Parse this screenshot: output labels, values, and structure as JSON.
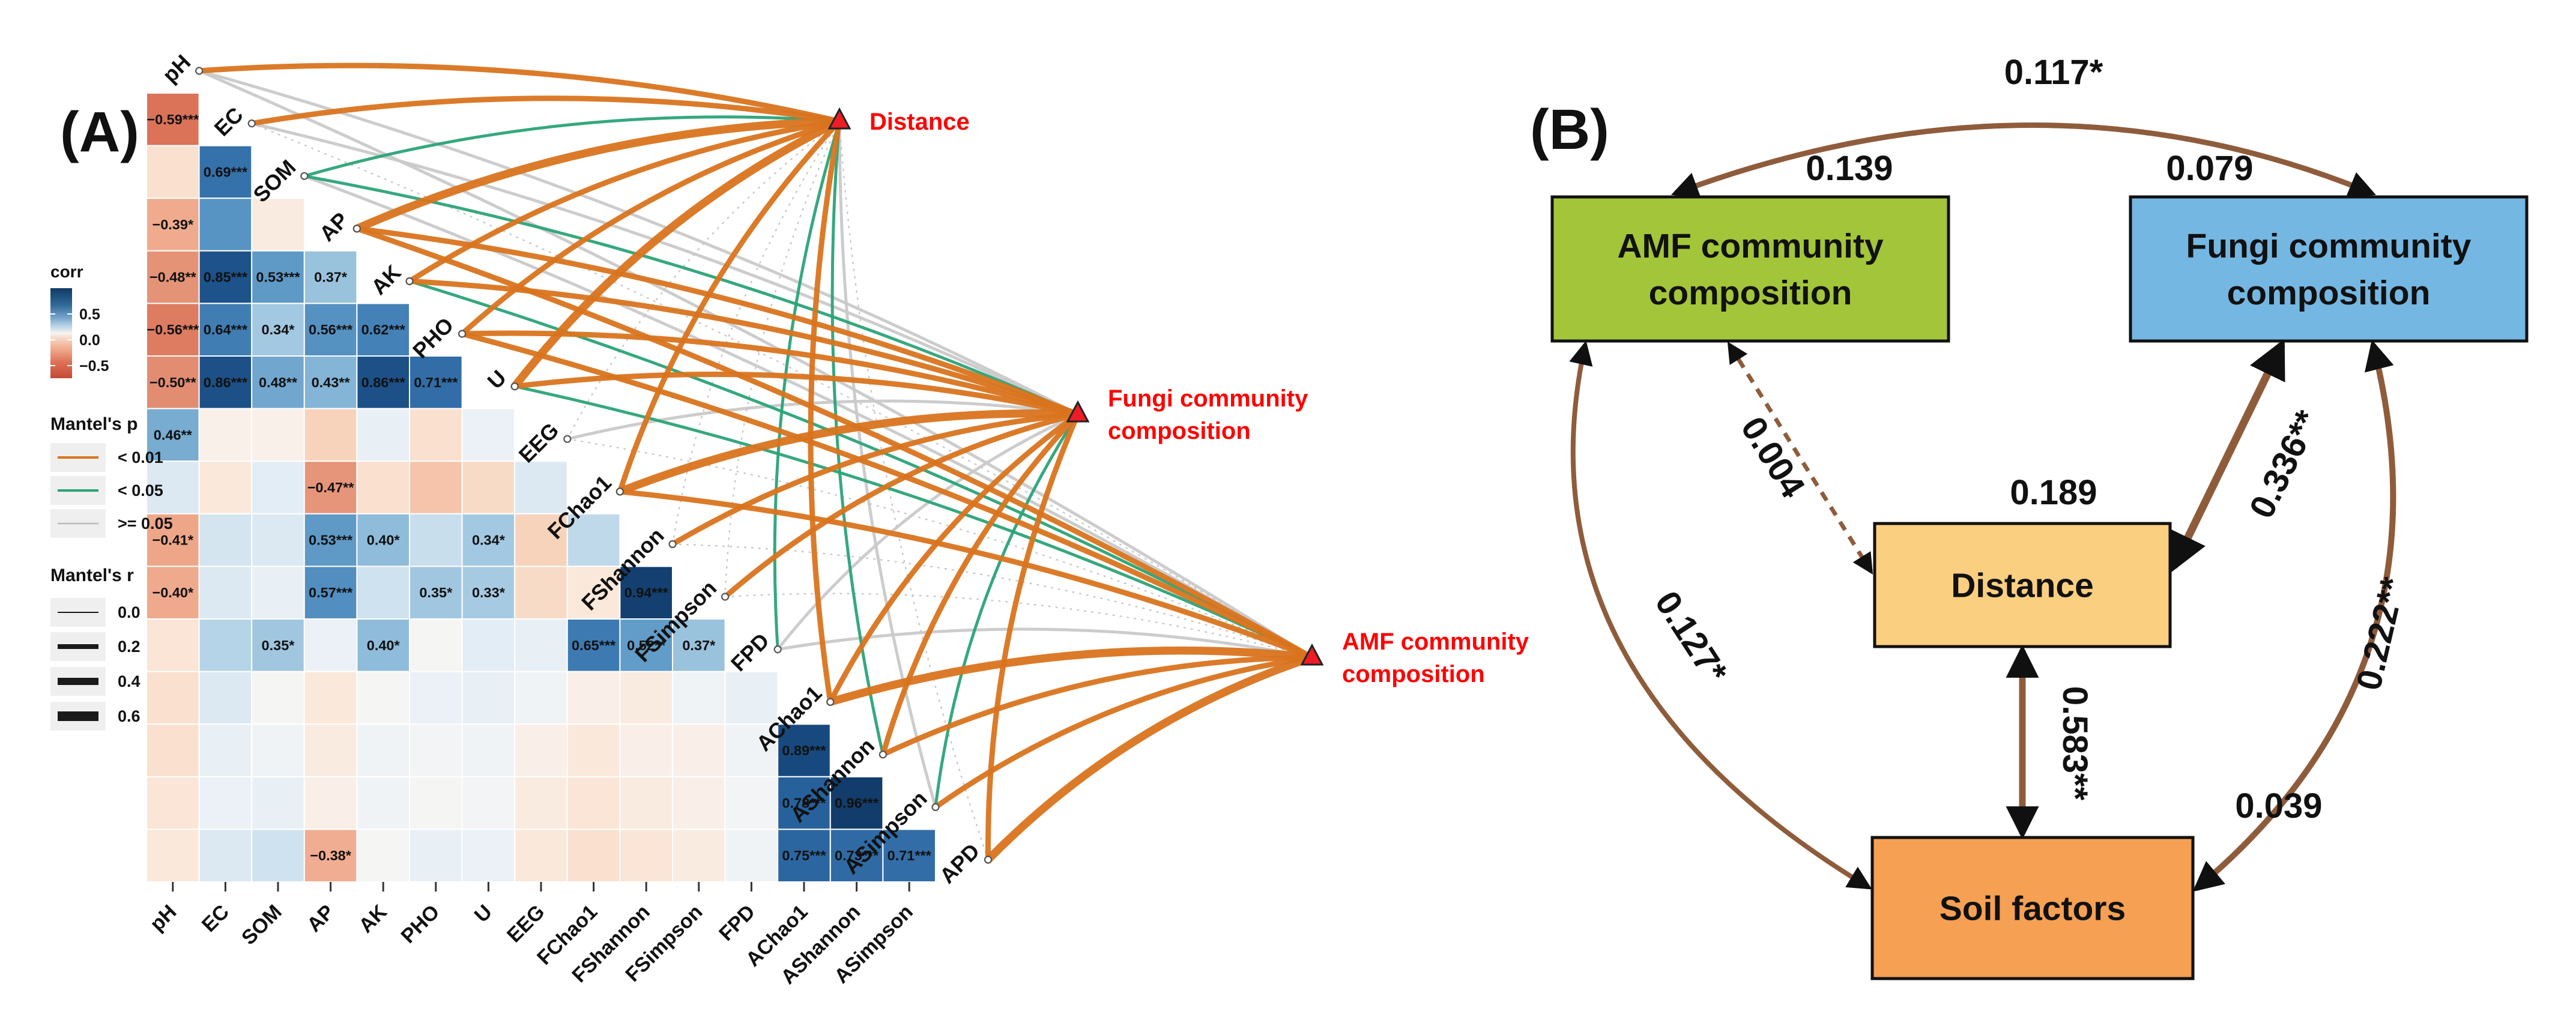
{
  "figure": {
    "panel_a_letter": "(A)",
    "panel_b_letter": "(B)"
  },
  "colors": {
    "mantel_p_lt001": "#D9741E",
    "mantel_p_lt005": "#2AA377",
    "mantel_p_ge005": "#C9C9C9",
    "mantel_dotted": "#C6C6C6",
    "node_marker_red": "#EE1C25",
    "node_label_red": "#FF0000",
    "arrow_brown": "#8F5C3B",
    "box_amf_green": "#A3C53A",
    "box_fungi_blue": "#74B7E2",
    "box_distance_yellow": "#FBCF80",
    "box_soil_orange": "#F5A053",
    "corr_positive_dark": "#0F3A64",
    "corr_negative_dark": "#C44A33"
  },
  "chart_data": [
    {
      "type": "heatmap",
      "panel": "A",
      "subtype": "lower-triangle correlation matrix with Mantel-test curves",
      "variables": [
        "pH",
        "EC",
        "SOM",
        "AP",
        "AK",
        "PHO",
        "U",
        "EEG",
        "FChao1",
        "FShannon",
        "FSimpson",
        "FPD",
        "AChao1",
        "AShannon",
        "ASimpson",
        "APD"
      ],
      "x_tick_labels": [
        "pH",
        "EC",
        "SOM",
        "AP",
        "AK",
        "PHO",
        "U",
        "EEG",
        "FChao1",
        "FShannon",
        "FSimpson",
        "FPD",
        "AChao1",
        "AShannon",
        "ASimpson"
      ],
      "row_labels": [
        "EC",
        "SOM",
        "AP",
        "AK",
        "PHO",
        "U",
        "EEG",
        "FChao1",
        "FShannon",
        "FSimpson",
        "FPD",
        "AChao1",
        "AShannon",
        "ASimpson",
        "APD"
      ],
      "corr_matrix": [
        [
          -0.59
        ],
        [
          -0.15,
          0.69
        ],
        [
          -0.39,
          0.55,
          -0.08
        ],
        [
          -0.48,
          0.85,
          0.53,
          0.37
        ],
        [
          -0.56,
          0.64,
          0.34,
          0.56,
          0.62
        ],
        [
          -0.5,
          0.86,
          0.48,
          0.43,
          0.86,
          0.71
        ],
        [
          0.46,
          -0.04,
          -0.04,
          -0.22,
          0.1,
          -0.15,
          0.08
        ],
        [
          0.15,
          -0.1,
          0.12,
          -0.47,
          -0.15,
          -0.28,
          -0.18,
          0.15
        ],
        [
          -0.41,
          0.18,
          0.15,
          0.53,
          0.4,
          0.22,
          0.34,
          -0.22,
          0.25
        ],
        [
          -0.4,
          0.15,
          0.1,
          0.57,
          0.2,
          0.35,
          0.33,
          -0.18,
          -0.1,
          0.94
        ],
        [
          -0.12,
          0.28,
          0.35,
          0.08,
          0.4,
          0.02,
          0.12,
          0.1,
          0.65,
          0.52,
          0.37
        ],
        [
          -0.15,
          0.15,
          0.02,
          -0.1,
          0.02,
          0.08,
          0.1,
          0.05,
          -0.05,
          -0.08,
          0.05,
          0.1
        ],
        [
          -0.15,
          0.1,
          0.05,
          -0.08,
          0.05,
          0.03,
          0.05,
          -0.05,
          -0.1,
          -0.05,
          -0.05,
          0.05,
          0.89
        ],
        [
          -0.12,
          0.08,
          0.1,
          -0.05,
          0.05,
          0.02,
          0.03,
          -0.08,
          -0.12,
          -0.08,
          -0.05,
          0.03,
          0.78,
          0.96
        ],
        [
          -0.1,
          0.15,
          0.2,
          -0.38,
          0.02,
          0.1,
          0.08,
          -0.1,
          -0.15,
          -0.12,
          -0.08,
          0.05,
          0.75,
          0.73,
          0.71
        ]
      ],
      "labeled_cells": [
        {
          "row": "EC",
          "col": "pH",
          "label": "−0.59***"
        },
        {
          "row": "SOM",
          "col": "EC",
          "label": "0.69***"
        },
        {
          "row": "AP",
          "col": "pH",
          "label": "−0.39*"
        },
        {
          "row": "AK",
          "col": "pH",
          "label": "−0.48**"
        },
        {
          "row": "AK",
          "col": "EC",
          "label": "0.85***"
        },
        {
          "row": "AK",
          "col": "SOM",
          "label": "0.53***"
        },
        {
          "row": "AK",
          "col": "AP",
          "label": "0.37*"
        },
        {
          "row": "PHO",
          "col": "pH",
          "label": "−0.56***"
        },
        {
          "row": "PHO",
          "col": "EC",
          "label": "0.64***"
        },
        {
          "row": "PHO",
          "col": "SOM",
          "label": "0.34*"
        },
        {
          "row": "PHO",
          "col": "AP",
          "label": "0.56***"
        },
        {
          "row": "PHO",
          "col": "AK",
          "label": "0.62***"
        },
        {
          "row": "U",
          "col": "pH",
          "label": "−0.50**"
        },
        {
          "row": "U",
          "col": "EC",
          "label": "0.86***"
        },
        {
          "row": "U",
          "col": "SOM",
          "label": "0.48**"
        },
        {
          "row": "U",
          "col": "AP",
          "label": "0.43**"
        },
        {
          "row": "U",
          "col": "AK",
          "label": "0.86***"
        },
        {
          "row": "U",
          "col": "PHO",
          "label": "0.71***"
        },
        {
          "row": "EEG",
          "col": "pH",
          "label": "0.46**"
        },
        {
          "row": "FChao1",
          "col": "AP",
          "label": "−0.47**"
        },
        {
          "row": "FShannon",
          "col": "pH",
          "label": "−0.41*"
        },
        {
          "row": "FShannon",
          "col": "AP",
          "label": "0.53***"
        },
        {
          "row": "FShannon",
          "col": "AK",
          "label": "0.40*"
        },
        {
          "row": "FShannon",
          "col": "U",
          "label": "0.34*"
        },
        {
          "row": "FSimpson",
          "col": "pH",
          "label": "−0.40*"
        },
        {
          "row": "FSimpson",
          "col": "AP",
          "label": "0.57***"
        },
        {
          "row": "FSimpson",
          "col": "PHO",
          "label": "0.35*"
        },
        {
          "row": "FSimpson",
          "col": "U",
          "label": "0.33*"
        },
        {
          "row": "FSimpson",
          "col": "FShannon",
          "label": "0.94***"
        },
        {
          "row": "FPD",
          "col": "SOM",
          "label": "0.35*"
        },
        {
          "row": "FPD",
          "col": "AK",
          "label": "0.40*"
        },
        {
          "row": "FPD",
          "col": "FChao1",
          "label": "0.65***"
        },
        {
          "row": "FPD",
          "col": "FShannon",
          "label": "0.52**"
        },
        {
          "row": "FPD",
          "col": "FSimpson",
          "label": "0.37*"
        },
        {
          "row": "AShannon",
          "col": "AChao1",
          "label": "0.89***"
        },
        {
          "row": "ASimpson",
          "col": "AChao1",
          "label": "0.78***"
        },
        {
          "row": "ASimpson",
          "col": "AShannon",
          "label": "0.96***"
        },
        {
          "row": "APD",
          "col": "AP",
          "label": "−0.38*"
        },
        {
          "row": "APD",
          "col": "AChao1",
          "label": "0.75***"
        },
        {
          "row": "APD",
          "col": "AShannon",
          "label": "0.73***"
        },
        {
          "row": "APD",
          "col": "ASimpson",
          "label": "0.71***"
        }
      ],
      "corr_legend": {
        "title": "corr",
        "ticks": [
          "0.5",
          "0.0",
          "−0.5"
        ]
      },
      "mantel_p_legend": {
        "title": "Mantel's p",
        "items": [
          {
            "label": "< 0.01",
            "class": "O"
          },
          {
            "label": "< 0.05",
            "class": "G"
          },
          {
            "label": ">= 0.05",
            "class": "X"
          }
        ]
      },
      "mantel_r_legend": {
        "title": "Mantel's r",
        "items": [
          {
            "label": "0.0",
            "width": 2
          },
          {
            "label": "0.2",
            "width": 8
          },
          {
            "label": "0.4",
            "width": 12
          },
          {
            "label": "0.6",
            "width": 16
          }
        ]
      },
      "nodes": [
        {
          "id": "distance",
          "label_lines": [
            "Distance"
          ]
        },
        {
          "id": "fungi",
          "label_lines": [
            "Fungi community",
            "composition"
          ]
        },
        {
          "id": "amf",
          "label_lines": [
            "AMF community",
            "composition"
          ]
        }
      ],
      "edges_note": "p-class: O=<0.01 (orange), G=<0.05 (green), X=>=0.05 (gray); r-class: 0=<0.2(dotted),2=0.2-0.4,4=0.4-0.6,6=>=0.6",
      "edges": {
        "distance": [
          "O4",
          "O4",
          "G2",
          "O6",
          "O4",
          "O4",
          "O6",
          "X0",
          "O4",
          "X0",
          "X0",
          "G2",
          "O4",
          "G2",
          "X2",
          "X0"
        ],
        "fungi": [
          "X2",
          "X2",
          "G2",
          "O4",
          "O4",
          "O4",
          "O4",
          "X2",
          "O6",
          "O4",
          "O4",
          "X2",
          "O4",
          "O4",
          "G2",
          "O4"
        ],
        "amf": [
          "X2",
          "X0",
          "X2",
          "O4",
          "G2",
          "O4",
          "G2",
          "X0",
          "O4",
          "X0",
          "X0",
          "X2",
          "O6",
          "O4",
          "O4",
          "O6"
        ]
      }
    },
    {
      "type": "diagram",
      "panel": "B",
      "subtype": "partial-Mantel / path diagram",
      "boxes": [
        {
          "id": "amf",
          "label_lines": [
            "AMF community",
            "composition"
          ],
          "r2": "0.139",
          "color_key": "box_amf_green"
        },
        {
          "id": "fungi",
          "label_lines": [
            "Fungi community",
            "composition"
          ],
          "r2": "0.079",
          "color_key": "box_fungi_blue"
        },
        {
          "id": "distance",
          "label_lines": [
            "Distance"
          ],
          "r2": "0.189",
          "color_key": "box_distance_yellow"
        },
        {
          "id": "soil",
          "label_lines": [
            "Soil factors"
          ],
          "r2": "0.039",
          "color_key": "box_soil_orange"
        }
      ],
      "paths": [
        {
          "from": "amf",
          "to": "fungi",
          "label": "0.117*",
          "style": "solid",
          "width": 9,
          "double_headed": true
        },
        {
          "from": "amf",
          "to": "distance",
          "label": "0.004",
          "style": "dashed",
          "width": 7,
          "double_headed": true
        },
        {
          "from": "fungi",
          "to": "distance",
          "label": "0.336**",
          "style": "solid",
          "width": 13,
          "double_headed": true
        },
        {
          "from": "distance",
          "to": "soil",
          "label": "0.583**",
          "style": "solid",
          "width": 11,
          "double_headed": true
        },
        {
          "from": "amf",
          "to": "soil",
          "label": "0.127*",
          "style": "solid",
          "width": 8,
          "double_headed": true
        },
        {
          "from": "fungi",
          "to": "soil",
          "label": "0.222**",
          "style": "solid",
          "width": 10,
          "double_headed": true
        }
      ]
    }
  ]
}
